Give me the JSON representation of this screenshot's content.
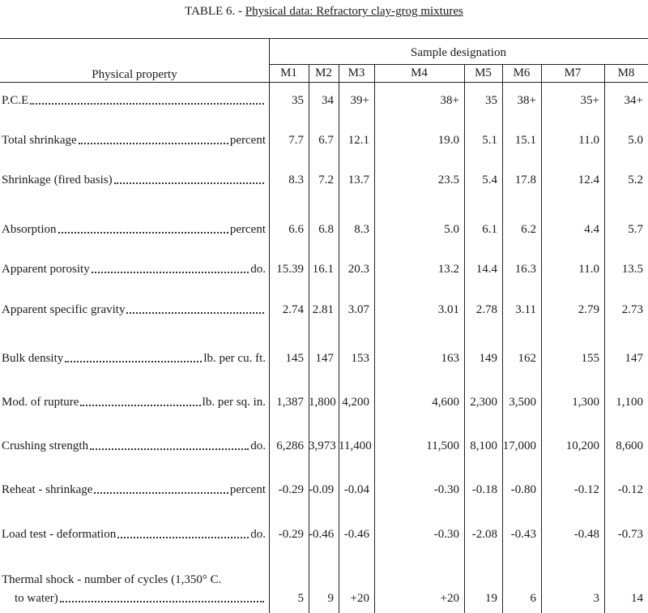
{
  "header": {
    "table_number": "TABLE 6. -",
    "title": "Physical data: Refractory clay-grog mixtures"
  },
  "table": {
    "property_header": "Physical property",
    "group_header": "Sample designation",
    "columns": [
      "M1",
      "M2",
      "M3",
      "M4",
      "M5",
      "M6",
      "M7",
      "M8"
    ],
    "rows": [
      {
        "property": [
          "P.C.E"
        ],
        "values": [
          "35",
          "34",
          "39+",
          "38+",
          "35",
          "38+",
          "35+",
          "34+"
        ]
      },
      {
        "property": [
          "Total shrinkage"
        ],
        "unit": "percent",
        "values": [
          "7.7",
          "6.7",
          "12.1",
          "19.0",
          "5.1",
          "15.1",
          "11.0",
          "5.0"
        ]
      },
      {
        "property": [
          "Shrinkage (fired basis)"
        ],
        "values": [
          "8.3",
          "7.2",
          "13.7",
          "23.5",
          "5.4",
          "17.8",
          "12.4",
          "5.2"
        ]
      },
      {
        "property": [
          "Absorption"
        ],
        "unit": "percent",
        "values": [
          "6.6",
          "6.8",
          "8.3",
          "5.0",
          "6.1",
          "6.2",
          "4.4",
          "5.7"
        ]
      },
      {
        "property": [
          "Apparent porosity"
        ],
        "unit": "do.",
        "values": [
          "15.39",
          "16.1",
          "20.3",
          "13.2",
          "14.4",
          "16.3",
          "11.0",
          "13.5"
        ]
      },
      {
        "property": [
          "Apparent specific gravity"
        ],
        "values": [
          "2.74",
          "2.81",
          "3.07",
          "3.01",
          "2.78",
          "3.11",
          "2.79",
          "2.73"
        ]
      },
      {
        "property": [
          "Bulk density"
        ],
        "unit": "lb. per cu. ft.",
        "values": [
          "145",
          "147",
          "153",
          "163",
          "149",
          "162",
          "155",
          "147"
        ]
      },
      {
        "property": [
          "Mod. of rupture"
        ],
        "unit": "lb. per sq. in.",
        "values": [
          "1,387",
          "1,800",
          "4,200",
          "4,600",
          "2,300",
          "3,500",
          "1,300",
          "1,100"
        ]
      },
      {
        "property": [
          "Crushing strength"
        ],
        "unit": "do.",
        "values": [
          "6,286",
          "3,973",
          "11,400",
          "11,500",
          "8,100",
          "17,000",
          "10,200",
          "8,600"
        ]
      },
      {
        "property": [
          "Reheat - shrinkage"
        ],
        "unit": "percent",
        "values": [
          "-0.29",
          "-0.09",
          "-0.04",
          "-0.30",
          "-0.18",
          "-0.80",
          "-0.12",
          "-0.12"
        ]
      },
      {
        "property": [
          "Load test - deformation"
        ],
        "unit": "do.",
        "values": [
          "-0.29",
          "-0.46",
          "-0.46",
          "-0.30",
          "-2.08",
          "-0.43",
          "-0.48",
          "-0.73"
        ]
      },
      {
        "property": [
          "Thermal shock - number of cycles (1,350° C.",
          "to water)"
        ],
        "values": [
          "5",
          "9",
          "+20",
          "+20",
          "19",
          "6",
          "3",
          "14"
        ]
      }
    ]
  }
}
